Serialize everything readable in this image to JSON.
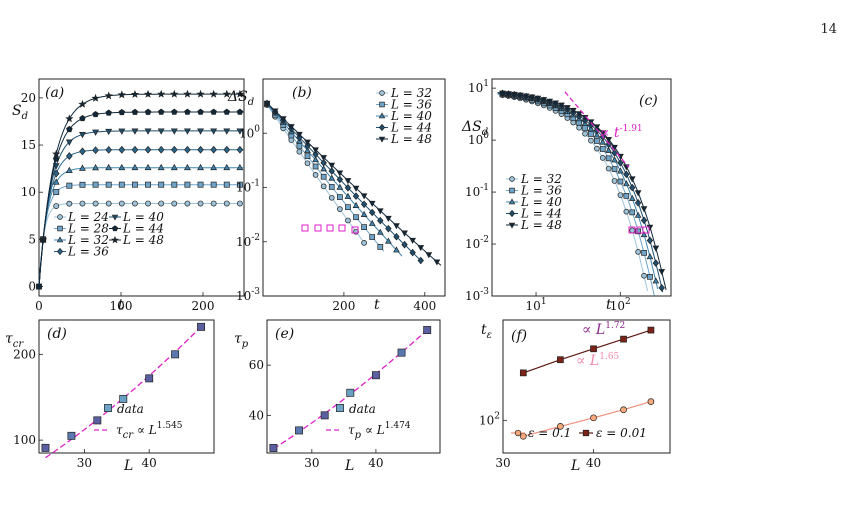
{
  "page": {
    "number": "14"
  },
  "colors": {
    "series": [
      "#9ec3d9",
      "#6fa4c8",
      "#3f85b0",
      "#2a6589",
      "#1e4f6f",
      "#10283b"
    ],
    "magenta": "#e020c8",
    "orange_fill": "#f6a97c",
    "orange_line": "#f0907a",
    "brown_fill": "#7a2316",
    "brown_line": "#5e1a12",
    "purple_text": "#8c2a8c",
    "pink_text": "#f08aa8",
    "point_fill": "#5f7fb0"
  },
  "chart_data": [
    {
      "id": "a",
      "type": "line",
      "panel_label": "(a)",
      "xlabel": "t",
      "ylabel": "S_d",
      "xlim": [
        0,
        250
      ],
      "ylim": [
        -1,
        22
      ],
      "x_ticks": [
        0,
        100,
        200
      ],
      "y_ticks": [
        0,
        5,
        10,
        15,
        20
      ],
      "x_tick_labels": [
        "0",
        "100",
        "200"
      ],
      "y_tick_labels": [
        "0",
        "5",
        "10",
        "15",
        "20"
      ],
      "legend_position": "lower-center",
      "series": [
        {
          "name": "L = 24",
          "marker": "circle",
          "saturation": 8.8,
          "tau": 6
        },
        {
          "name": "L = 28",
          "marker": "square",
          "saturation": 10.8,
          "tau": 8
        },
        {
          "name": "L = 32",
          "marker": "triangle-up",
          "saturation": 12.6,
          "tau": 10
        },
        {
          "name": "L = 36",
          "marker": "diamond",
          "saturation": 14.5,
          "tau": 12
        },
        {
          "name": "L = 40",
          "marker": "triangle-down",
          "saturation": 16.5,
          "tau": 14
        },
        {
          "name": "L = 44",
          "marker": "pentagon",
          "saturation": 18.5,
          "tau": 16
        },
        {
          "name": "L = 48",
          "marker": "star",
          "saturation": 20.4,
          "tau": 18
        }
      ]
    },
    {
      "id": "b",
      "type": "line",
      "panel_label": "(b)",
      "xlabel": "t",
      "ylabel": "ΔS_d",
      "yscale": "log",
      "xlim": [
        0,
        450
      ],
      "ylim": [
        0.001,
        10
      ],
      "x_ticks": [
        200,
        400
      ],
      "x_tick_labels": [
        "200",
        "400"
      ],
      "y_tick_labels": [
        "10^0",
        "10^-1",
        "10^-2",
        "10^-3"
      ],
      "legend_position": "top-right",
      "series": [
        {
          "name": "L = 32",
          "marker": "circle",
          "decay_times": [
            40,
            70
          ],
          "t_end": 255
        },
        {
          "name": "L = 36",
          "marker": "square",
          "decay_times": [
            45,
            80
          ],
          "t_end": 300
        },
        {
          "name": "L = 40",
          "marker": "triangle-up",
          "decay_times": [
            50,
            90
          ],
          "t_end": 345
        },
        {
          "name": "L = 44",
          "marker": "diamond",
          "decay_times": [
            55,
            100
          ],
          "t_end": 390
        },
        {
          "name": "L = 48",
          "marker": "triangle-down",
          "decay_times": [
            60,
            110
          ],
          "t_end": 440
        }
      ]
    },
    {
      "id": "c",
      "type": "line",
      "panel_label": "(c)",
      "xlabel": "t",
      "ylabel": "ΔS_d",
      "xscale": "log",
      "yscale": "log",
      "xlim": [
        3,
        400
      ],
      "ylim": [
        0.001,
        15
      ],
      "x_tick_labels": [
        "10^1",
        "10^2"
      ],
      "y_tick_labels": [
        "10^1",
        "10^0",
        "10^-1",
        "10^-2",
        "10^-3"
      ],
      "legend_position": "lower-left",
      "annotation": {
        "label": "∝ t^-1.91",
        "exponent": -1.91
      },
      "series": [
        {
          "name": "L = 32",
          "marker": "circle",
          "t_end": 255
        },
        {
          "name": "L = 36",
          "marker": "square",
          "t_end": 300
        },
        {
          "name": "L = 40",
          "marker": "triangle-up",
          "t_end": 345
        },
        {
          "name": "L = 44",
          "marker": "diamond",
          "t_end": 390
        },
        {
          "name": "L = 48",
          "marker": "triangle-down",
          "t_end": 440
        }
      ]
    },
    {
      "id": "d",
      "type": "scatter",
      "panel_label": "(d)",
      "xlabel": "L",
      "ylabel": "τ_cr",
      "xlim": [
        23,
        50
      ],
      "ylim": [
        85,
        240
      ],
      "x_ticks": [
        30,
        40
      ],
      "y_ticks": [
        100,
        200
      ],
      "x_tick_labels": [
        "30",
        "40"
      ],
      "y_tick_labels": [
        "100",
        "200"
      ],
      "legend_position": "lower-right",
      "x": [
        24,
        28,
        32,
        36,
        40,
        44,
        48
      ],
      "y": [
        91,
        105,
        123,
        148,
        172,
        200,
        232
      ],
      "series": [
        {
          "name": "data",
          "marker": "square"
        },
        {
          "name": "τ_cr ∝ L^1.545",
          "exponent": 1.545,
          "style": "dashed"
        }
      ]
    },
    {
      "id": "e",
      "type": "scatter",
      "panel_label": "(e)",
      "xlabel": "L",
      "ylabel": "τ_p",
      "xlim": [
        23,
        50
      ],
      "ylim": [
        25,
        78
      ],
      "x_ticks": [
        30,
        40
      ],
      "y_ticks": [
        40,
        60
      ],
      "x_tick_labels": [
        "30",
        "40"
      ],
      "y_tick_labels": [
        "40",
        "60"
      ],
      "legend_position": "lower-right",
      "x": [
        24,
        28,
        32,
        36,
        40,
        44,
        48
      ],
      "y": [
        27,
        34,
        40,
        49,
        56,
        65,
        74
      ],
      "series": [
        {
          "name": "data",
          "marker": "square"
        },
        {
          "name": "τ_p ∝ L^1.474",
          "exponent": 1.474,
          "style": "dashed"
        }
      ]
    },
    {
      "id": "f",
      "type": "line",
      "panel_label": "(f)",
      "xlabel": "L",
      "ylabel": "t_ε",
      "xscale": "log",
      "yscale": "log",
      "xlim": [
        30,
        51
      ],
      "ylim": [
        60,
        480
      ],
      "x_ticks": [
        30,
        40
      ],
      "x_tick_labels": [
        "30",
        "40"
      ],
      "y_tick_labels": [
        "10^2"
      ],
      "legend_position": "bottom",
      "series": [
        {
          "name": "ε = 0.1",
          "marker": "circle",
          "x": [
            32,
            36,
            40,
            44,
            48
          ],
          "y": [
            78,
            91,
            104,
            118,
            134
          ],
          "fit_label": "∝ L^1.65"
        },
        {
          "name": "ε = 0.01",
          "marker": "square",
          "x": [
            32,
            36,
            40,
            44,
            48
          ],
          "y": [
            210,
            258,
            306,
            356,
            410
          ],
          "fit_label": "∝ L^1.72"
        }
      ]
    }
  ]
}
